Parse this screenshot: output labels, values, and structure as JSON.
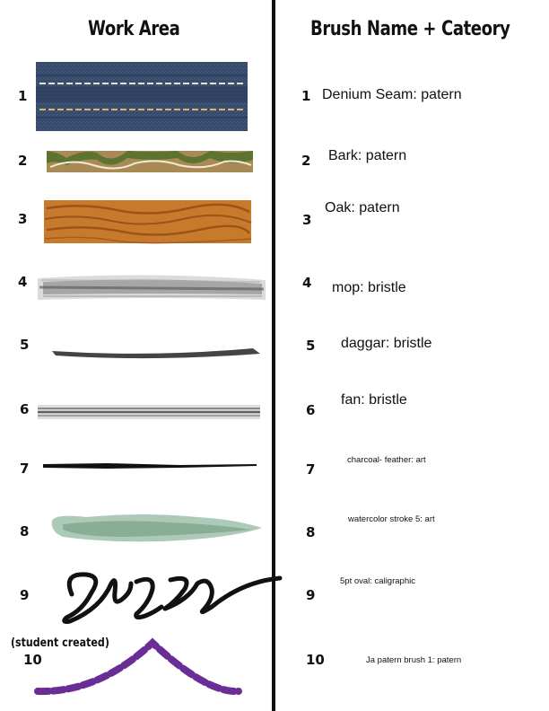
{
  "headings": {
    "left": "Work Area",
    "right": "Brush Name + Cateory"
  },
  "rows": [
    {
      "number": "1",
      "brush": "Denium Seam: patern"
    },
    {
      "number": "2",
      "brush": "Bark: patern"
    },
    {
      "number": "3",
      "brush": "Oak: patern"
    },
    {
      "number": "4",
      "brush": "mop: bristle"
    },
    {
      "number": "5",
      "brush": "daggar: bristle"
    },
    {
      "number": "6",
      "brush": "fan: bristle"
    },
    {
      "number": "7",
      "brush": "charcoal- feather: art"
    },
    {
      "number": "8",
      "brush": "watercolor stroke 5: art"
    },
    {
      "number": "9",
      "brush": "5pt oval: caligraphic"
    },
    {
      "number": "10",
      "brush": "Ja patern brush 1: patern"
    }
  ],
  "student_note": "(student created)",
  "colors": {
    "denim": "#3a4f70",
    "bark_green": "#5d7332",
    "bark_brown": "#a88a55",
    "oak": "#c87a2c",
    "bristle_gray": "#555555",
    "watercolor": "#6a9d7d",
    "student_purple": "#6a2d96"
  }
}
